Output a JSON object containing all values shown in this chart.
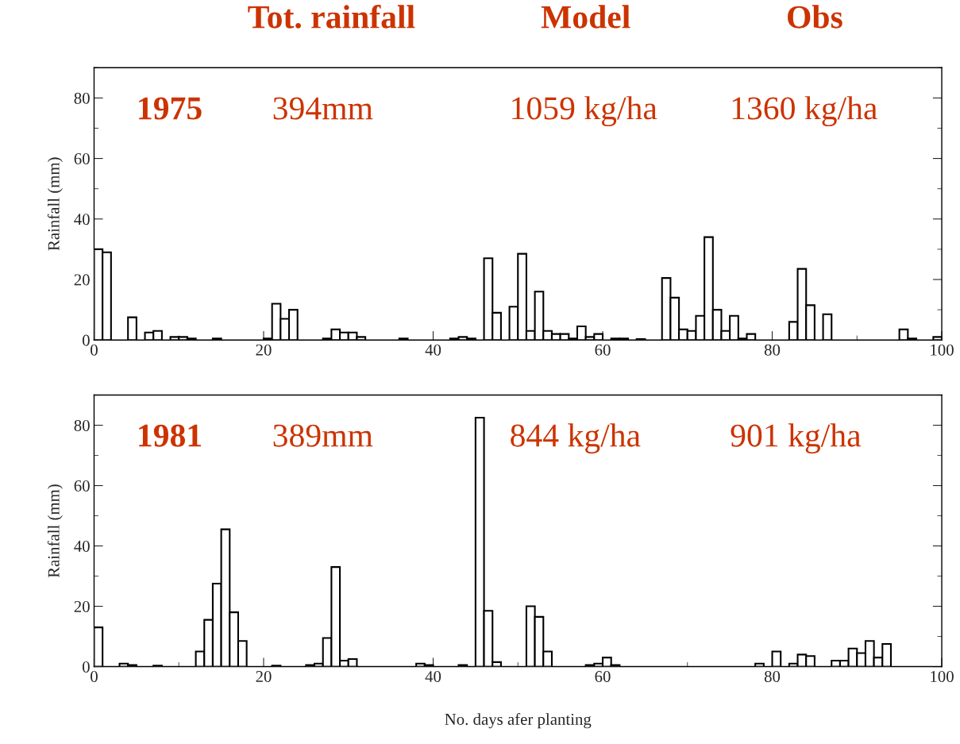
{
  "chart_data": [
    {
      "type": "bar",
      "ylabel": "Rainfall (mm)",
      "annotations": [
        "Tot. rainfall",
        "Model",
        "Obs",
        "1975",
        "394mm",
        "1059 kg/ha",
        "1360 kg/ha"
      ],
      "x": [
        0.5,
        1.5,
        4.5,
        6.5,
        7.5,
        9.5,
        10.5,
        11.5,
        14.5,
        20.5,
        21.5,
        22.5,
        23.5,
        27.5,
        28.5,
        29.5,
        30.5,
        31.5,
        36.5,
        42.5,
        43.5,
        44.5,
        46.5,
        47.5,
        49.5,
        50.5,
        51.5,
        52.5,
        53.5,
        54.5,
        55.5,
        56.5,
        57.5,
        58.5,
        59.5,
        61.5,
        62.5,
        64.5,
        67.5,
        68.5,
        69.5,
        70.5,
        71.5,
        72.5,
        73.5,
        74.5,
        75.5,
        76.5,
        77.5,
        82.5,
        83.5,
        84.5,
        86.5,
        95.5,
        96.5,
        99.5
      ],
      "values": [
        30,
        29,
        7.5,
        2.5,
        3,
        1,
        1,
        0.5,
        0.5,
        0.5,
        12,
        7,
        10,
        0.5,
        3.5,
        2.5,
        2.5,
        1,
        0.5,
        0.5,
        1,
        0.5,
        27,
        9,
        11,
        28.5,
        3,
        16,
        3,
        2,
        2,
        0.5,
        4.5,
        1,
        2,
        0.5,
        0.5,
        0.3,
        20.5,
        14,
        3.5,
        3,
        8,
        34,
        10,
        3,
        8,
        0.5,
        2,
        6,
        23.5,
        11.5,
        8.5,
        3.5,
        0.5,
        1
      ],
      "color": "#ffffff",
      "xlim": [
        0,
        100
      ],
      "xticks": [
        0,
        20,
        40,
        60,
        80,
        100
      ],
      "ylim": [
        0,
        90
      ],
      "yticks": [
        0,
        20,
        40,
        60,
        80
      ],
      "grid": false,
      "legend": false
    },
    {
      "type": "bar",
      "ylabel": "Rainfall (mm)",
      "xlabel": "No. days afer planting",
      "annotations": [
        "1981",
        "389mm",
        "844 kg/ha",
        "901 kg/ha"
      ],
      "x": [
        0.5,
        3.5,
        4.5,
        7.5,
        12.5,
        13.5,
        14.5,
        15.5,
        16.5,
        17.5,
        21.5,
        25.5,
        26.5,
        27.5,
        28.5,
        29.5,
        30.5,
        38.5,
        39.5,
        43.5,
        45.5,
        46.5,
        47.5,
        51.5,
        52.5,
        53.5,
        58.5,
        59.5,
        60.5,
        61.5,
        78.5,
        80.5,
        82.5,
        83.5,
        84.5,
        87.5,
        88.5,
        89.5,
        90.5,
        91.5,
        92.5,
        93.5
      ],
      "values": [
        13,
        1,
        0.5,
        0.3,
        5,
        15.5,
        27.5,
        45.5,
        18,
        8.5,
        0.3,
        0.5,
        1,
        9.5,
        33,
        2,
        2.5,
        1,
        0.5,
        0.5,
        82.5,
        18.5,
        1.5,
        20,
        16.5,
        5,
        0.5,
        1,
        3,
        0.5,
        1,
        5,
        1,
        4,
        3.5,
        2,
        2,
        6,
        4.5,
        8.5,
        3,
        7.5
      ],
      "color": "#ffffff",
      "xlim": [
        0,
        100
      ],
      "xticks": [
        0,
        20,
        40,
        60,
        80,
        100
      ],
      "ylim": [
        0,
        90
      ],
      "yticks": [
        0,
        20,
        40,
        60,
        80
      ],
      "grid": false,
      "legend": false
    }
  ]
}
